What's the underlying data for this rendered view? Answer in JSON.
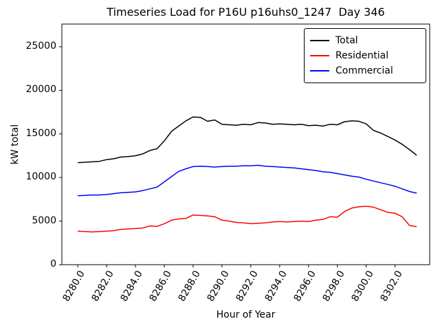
{
  "chart_data": {
    "type": "line",
    "title": "Timeseries Load for P16U p16uhs0_1247  Day 346",
    "xlabel": "Hour of Year",
    "ylabel": "kW total",
    "xlim": [
      8278.9,
      8304.4
    ],
    "ylim": [
      0,
      27600
    ],
    "xticks": [
      8280,
      8282,
      8284,
      8286,
      8288,
      8290,
      8292,
      8294,
      8296,
      8298,
      8300,
      8302
    ],
    "yticks": [
      0,
      5000,
      10000,
      15000,
      20000,
      25000
    ],
    "grid": false,
    "legend_position": "upper right",
    "x": [
      8280.0,
      8280.5,
      8281.0,
      8281.5,
      8282.0,
      8282.5,
      8283.0,
      8283.5,
      8284.0,
      8284.5,
      8285.0,
      8285.5,
      8286.0,
      8286.5,
      8287.0,
      8287.5,
      8288.0,
      8288.5,
      8289.0,
      8289.5,
      8290.0,
      8290.5,
      8291.0,
      8291.5,
      8292.0,
      8292.5,
      8293.0,
      8293.5,
      8294.0,
      8294.5,
      8295.0,
      8295.5,
      8296.0,
      8296.5,
      8297.0,
      8297.5,
      8298.0,
      8298.5,
      8299.0,
      8299.5,
      8300.0,
      8300.5,
      8301.0,
      8301.5,
      8302.0,
      8302.5,
      8303.0,
      8303.5
    ],
    "series": [
      {
        "name": "Total",
        "color": "#000000",
        "values": [
          11700,
          11750,
          11800,
          11850,
          12050,
          12150,
          12350,
          12400,
          12500,
          12700,
          13100,
          13300,
          14200,
          15300,
          15900,
          16500,
          16950,
          16900,
          16450,
          16600,
          16100,
          16050,
          16000,
          16100,
          16050,
          16300,
          16250,
          16100,
          16150,
          16100,
          16050,
          16100,
          15950,
          16000,
          15900,
          16100,
          16050,
          16400,
          16500,
          16450,
          16150,
          15400,
          15100,
          14700,
          14300,
          13800,
          13200,
          12550
        ]
      },
      {
        "name": "Residential",
        "color": "#ff0000",
        "values": [
          3850,
          3800,
          3750,
          3800,
          3850,
          3900,
          4050,
          4100,
          4150,
          4200,
          4450,
          4400,
          4700,
          5100,
          5250,
          5300,
          5700,
          5650,
          5600,
          5500,
          5100,
          5000,
          4850,
          4800,
          4700,
          4750,
          4800,
          4900,
          4950,
          4900,
          4950,
          5000,
          4950,
          5100,
          5200,
          5500,
          5450,
          6100,
          6500,
          6650,
          6700,
          6600,
          6300,
          6000,
          5900,
          5500,
          4500,
          4350
        ]
      },
      {
        "name": "Commercial",
        "color": "#0000ff",
        "values": [
          7900,
          7950,
          8000,
          8000,
          8050,
          8150,
          8250,
          8300,
          8350,
          8500,
          8700,
          8900,
          9500,
          10100,
          10700,
          11000,
          11250,
          11300,
          11250,
          11200,
          11250,
          11300,
          11300,
          11350,
          11350,
          11400,
          11300,
          11250,
          11200,
          11150,
          11100,
          11000,
          10900,
          10800,
          10650,
          10600,
          10450,
          10300,
          10150,
          10050,
          9800,
          9600,
          9400,
          9200,
          9000,
          8700,
          8400,
          8200
        ]
      }
    ]
  }
}
